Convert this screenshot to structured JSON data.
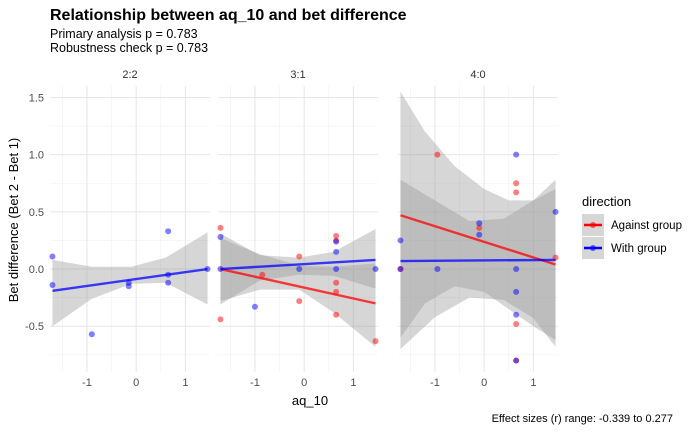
{
  "chart_data": {
    "type": "scatter",
    "title": "Relationship between aq_10 and bet difference",
    "subtitle_lines": [
      "Primary analysis p = 0.783",
      "Robustness check p = 0.783"
    ],
    "xlabel": "aq_10",
    "ylabel": "Bet difference (Bet 2 - Bet 1)",
    "caption": "Effect sizes (r) range: -0.339 to 0.277",
    "xlim": [
      -1.75,
      1.5
    ],
    "ylim": [
      -0.9,
      1.6
    ],
    "x_ticks": [
      -1,
      0,
      1
    ],
    "y_ticks": [
      -0.5,
      0.0,
      0.5,
      1.0,
      1.5
    ],
    "y_tick_labels": [
      "-0.5",
      "0.0",
      "0.5",
      "1.0",
      "1.5"
    ],
    "grid": true,
    "legend": {
      "title": "direction",
      "position": "right",
      "entries": [
        {
          "label": "Against group",
          "color": "#ff0000"
        },
        {
          "label": "With group",
          "color": "#0000ff"
        }
      ]
    },
    "panels": [
      {
        "label": "2:2",
        "series": [
          {
            "name": "With group",
            "color": "#0000ff",
            "points": [
              [
                -1.7,
                0.11
              ],
              [
                -1.7,
                -0.14
              ],
              [
                -0.9,
                -0.57
              ],
              [
                -0.15,
                -0.12
              ],
              [
                -0.15,
                -0.15
              ],
              [
                0.65,
                0.33
              ],
              [
                0.65,
                -0.05
              ],
              [
                0.65,
                -0.12
              ],
              [
                1.45,
                0.0
              ]
            ],
            "fit": [
              [
                -1.7,
                -0.19
              ],
              [
                1.45,
                0.0
              ]
            ],
            "band_upper": [
              [
                -1.7,
                0.08
              ],
              [
                -0.9,
                0.02
              ],
              [
                -0.1,
                0.02
              ],
              [
                0.6,
                0.1
              ],
              [
                1.45,
                0.32
              ]
            ],
            "band_lower": [
              [
                -1.7,
                -0.5
              ],
              [
                -0.9,
                -0.26
              ],
              [
                -0.1,
                -0.13
              ],
              [
                0.6,
                -0.12
              ],
              [
                1.45,
                -0.31
              ]
            ]
          }
        ]
      },
      {
        "label": "3:1",
        "series": [
          {
            "name": "Against group",
            "color": "#ff0000",
            "points": [
              [
                -1.7,
                0.36
              ],
              [
                -1.7,
                -0.44
              ],
              [
                -0.85,
                -0.05
              ],
              [
                -0.1,
                0.11
              ],
              [
                -0.1,
                -0.28
              ],
              [
                0.65,
                0.29
              ],
              [
                0.65,
                0.25
              ],
              [
                0.65,
                -0.12
              ],
              [
                0.65,
                -0.2
              ],
              [
                0.65,
                -0.4
              ],
              [
                1.45,
                -0.63
              ]
            ],
            "fit": [
              [
                -1.7,
                0.0
              ],
              [
                1.45,
                -0.3
              ]
            ],
            "band_upper": [
              [
                -1.7,
                0.27
              ],
              [
                -0.9,
                0.13
              ],
              [
                -0.1,
                0.03
              ],
              [
                0.6,
                0.02
              ],
              [
                1.45,
                0.05
              ]
            ],
            "band_lower": [
              [
                -1.7,
                -0.28
              ],
              [
                -0.9,
                -0.18
              ],
              [
                -0.1,
                -0.18
              ],
              [
                0.6,
                -0.38
              ],
              [
                1.45,
                -0.68
              ]
            ]
          },
          {
            "name": "With group",
            "color": "#0000ff",
            "points": [
              [
                -1.7,
                0.28
              ],
              [
                -1.7,
                0.0
              ],
              [
                -1.0,
                -0.33
              ],
              [
                -0.1,
                0.0
              ],
              [
                0.65,
                0.24
              ],
              [
                0.65,
                0.15
              ],
              [
                0.65,
                0.0
              ],
              [
                1.45,
                0.0
              ]
            ],
            "fit": [
              [
                -1.7,
                0.0
              ],
              [
                1.45,
                0.08
              ]
            ],
            "band_upper": [
              [
                -1.7,
                0.31
              ],
              [
                -0.9,
                0.12
              ],
              [
                -0.1,
                0.1
              ],
              [
                0.6,
                0.15
              ],
              [
                1.45,
                0.35
              ]
            ],
            "band_lower": [
              [
                -1.7,
                -0.31
              ],
              [
                -0.9,
                -0.1
              ],
              [
                -0.1,
                -0.05
              ],
              [
                0.6,
                -0.06
              ],
              [
                1.45,
                -0.17
              ]
            ]
          }
        ]
      },
      {
        "label": "4:0",
        "series": [
          {
            "name": "Against group",
            "color": "#ff0000",
            "points": [
              [
                -1.7,
                0.0
              ],
              [
                -0.95,
                1.0
              ],
              [
                -0.1,
                0.36
              ],
              [
                0.65,
                0.75
              ],
              [
                0.65,
                0.67
              ],
              [
                0.65,
                -0.48
              ],
              [
                0.65,
                -0.8
              ],
              [
                1.45,
                0.1
              ]
            ],
            "fit": [
              [
                -1.7,
                0.47
              ],
              [
                1.45,
                0.04
              ]
            ],
            "band_upper": [
              [
                -1.7,
                1.55
              ],
              [
                -1.2,
                1.2
              ],
              [
                -0.6,
                0.9
              ],
              [
                0.0,
                0.7
              ],
              [
                0.5,
                0.6
              ],
              [
                1.0,
                0.6
              ],
              [
                1.45,
                0.7
              ]
            ],
            "band_lower": [
              [
                -1.7,
                -0.6
              ],
              [
                -1.2,
                -0.3
              ],
              [
                -0.6,
                -0.15
              ],
              [
                0.0,
                -0.2
              ],
              [
                0.5,
                -0.35
              ],
              [
                1.0,
                -0.5
              ],
              [
                1.45,
                -0.62
              ]
            ]
          },
          {
            "name": "With group",
            "color": "#0000ff",
            "points": [
              [
                -1.7,
                0.25
              ],
              [
                -1.7,
                0.0
              ],
              [
                -0.95,
                0.0
              ],
              [
                -0.1,
                0.4
              ],
              [
                -0.1,
                0.3
              ],
              [
                0.65,
                1.0
              ],
              [
                0.65,
                0.0
              ],
              [
                0.65,
                -0.2
              ],
              [
                0.65,
                -0.4
              ],
              [
                0.65,
                -0.8
              ],
              [
                1.45,
                0.5
              ]
            ],
            "fit": [
              [
                -1.7,
                0.07
              ],
              [
                1.45,
                0.08
              ]
            ],
            "band_upper": [
              [
                -1.7,
                0.78
              ],
              [
                -1.0,
                0.6
              ],
              [
                -0.3,
                0.42
              ],
              [
                0.4,
                0.44
              ],
              [
                1.0,
                0.6
              ],
              [
                1.45,
                0.78
              ]
            ],
            "band_lower": [
              [
                -1.7,
                -0.7
              ],
              [
                -1.0,
                -0.42
              ],
              [
                -0.3,
                -0.25
              ],
              [
                0.4,
                -0.27
              ],
              [
                1.0,
                -0.43
              ],
              [
                1.45,
                -0.68
              ]
            ]
          }
        ]
      }
    ]
  }
}
